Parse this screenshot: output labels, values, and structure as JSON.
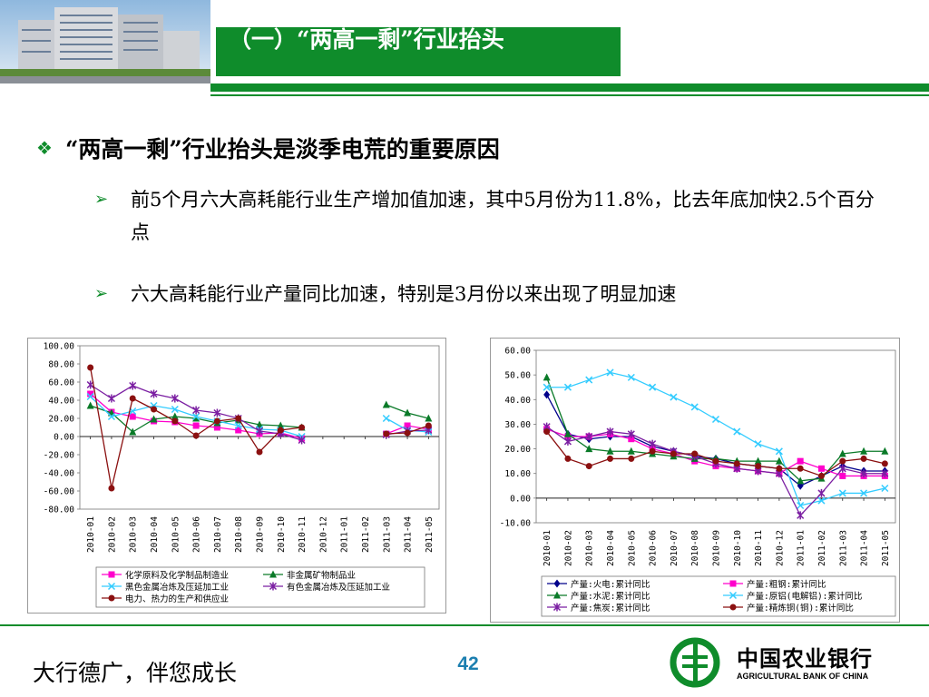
{
  "colors": {
    "brand_green": "#0f8c2b",
    "page_number": "#1c7fb0"
  },
  "header": {
    "title": "（一）“两高一剩”行业抬头"
  },
  "bullets": {
    "main": "“两高一剩”行业抬头是淡季电荒的重要原因",
    "sub1": "前5个月六大高耗能行业生产增加值加速，其中5月份为11.8%，比去年底加快2.5个百分点",
    "sub2": "六大高耗能行业产量同比加速，特别是3月份以来出现了明显加速"
  },
  "footer": {
    "slogan": "大行德广，伴您成长",
    "page_number": "42",
    "logo_cn": "中国农业银行",
    "logo_en": "AGRICULTURAL BANK OF CHINA"
  },
  "chart_data": [
    {
      "type": "line",
      "x": [
        "2010-01",
        "2010-02",
        "2010-03",
        "2010-04",
        "2010-05",
        "2010-06",
        "2010-07",
        "2010-08",
        "2010-09",
        "2010-10",
        "2010-11",
        "2010-12",
        "2011-01",
        "2011-02",
        "2011-03",
        "2011-04",
        "2011-05"
      ],
      "ylim": [
        -80,
        100
      ],
      "yticks": [
        "100.00",
        "80.00",
        "60.00",
        "40.00",
        "20.00",
        "0.00",
        "-20.00",
        "-40.00",
        "-60.00",
        "-80.00"
      ],
      "legend_position": "bottom",
      "series": [
        {
          "name": "化学原料及化学制品制造业",
          "color": "#ff00cc",
          "marker": "square",
          "values": [
            47,
            27,
            22,
            17,
            16,
            12,
            10,
            7,
            3,
            4,
            -2,
            null,
            null,
            null,
            3,
            12,
            8
          ]
        },
        {
          "name": "非金属矿物制品业",
          "color": "#0a7a28",
          "marker": "triangle",
          "values": [
            34,
            26,
            5,
            19,
            22,
            20,
            15,
            18,
            13,
            12,
            10,
            null,
            null,
            null,
            35,
            26,
            20
          ]
        },
        {
          "name": "黑色金属冶炼及压延加工业",
          "color": "#33ccff",
          "marker": "cross",
          "values": [
            44,
            22,
            28,
            34,
            30,
            22,
            17,
            12,
            8,
            7,
            0,
            null,
            null,
            null,
            20,
            7,
            5
          ]
        },
        {
          "name": "有色金属冶炼及压延加工业",
          "color": "#7b1fa2",
          "marker": "star",
          "values": [
            57,
            42,
            56,
            47,
            42,
            29,
            26,
            20,
            6,
            3,
            -4,
            null,
            null,
            null,
            2,
            6,
            7
          ]
        },
        {
          "name": "电力、热力的生产和供应业",
          "color": "#8b1010",
          "marker": "circle",
          "values": [
            76,
            -57,
            42,
            30,
            17,
            1,
            17,
            20,
            -17,
            7,
            10,
            null,
            null,
            null,
            3,
            4,
            12
          ]
        }
      ]
    },
    {
      "type": "line",
      "x": [
        "2010-01",
        "2010-02",
        "2010-03",
        "2010-04",
        "2010-05",
        "2010-06",
        "2010-07",
        "2010-08",
        "2010-09",
        "2010-10",
        "2010-11",
        "2010-12",
        "2011-01",
        "2011-02",
        "2011-03",
        "2011-04",
        "2011-05"
      ],
      "ylim": [
        -10,
        60
      ],
      "yticks": [
        "60.00",
        "50.00",
        "40.00",
        "30.00",
        "20.00",
        "10.00",
        "0.00",
        "-10.00"
      ],
      "legend_position": "bottom",
      "series": [
        {
          "name": "产量:火电:累计同比",
          "color": "#00008b",
          "marker": "diamond",
          "values": [
            42,
            26,
            24,
            25,
            25,
            21,
            19,
            17,
            16,
            14,
            13,
            12,
            5,
            9,
            13,
            11,
            11
          ]
        },
        {
          "name": "产量:粗钢:累计同比",
          "color": "#ff00cc",
          "marker": "square",
          "values": [
            28,
            25,
            25,
            26,
            24,
            20,
            18,
            15,
            13,
            12,
            11,
            10,
            15,
            12,
            9,
            9,
            9
          ]
        },
        {
          "name": "产量:水泥:累计同比",
          "color": "#0a7a28",
          "marker": "triangle",
          "values": [
            49,
            26,
            20,
            19,
            19,
            18,
            17,
            16,
            16,
            15,
            15,
            15,
            7,
            8,
            18,
            19,
            19
          ]
        },
        {
          "name": "产量:原铝(电解铝):累计同比",
          "color": "#33ccff",
          "marker": "cross",
          "values": [
            45,
            45,
            48,
            51,
            49,
            45,
            41,
            37,
            32,
            27,
            22,
            19,
            -3,
            -1,
            2,
            2,
            4
          ]
        },
        {
          "name": "产量:焦炭:累计同比",
          "color": "#7b1fa2",
          "marker": "star",
          "values": [
            29,
            23,
            25,
            27,
            26,
            22,
            19,
            17,
            14,
            12,
            11,
            10,
            -7,
            2,
            12,
            10,
            10
          ]
        },
        {
          "name": "产量:精炼铜(铜):累计同比",
          "color": "#8b1010",
          "marker": "circle",
          "values": [
            27,
            16,
            13,
            16,
            16,
            19,
            18,
            18,
            15,
            14,
            13,
            12,
            12,
            9,
            15,
            16,
            14
          ]
        }
      ]
    }
  ]
}
